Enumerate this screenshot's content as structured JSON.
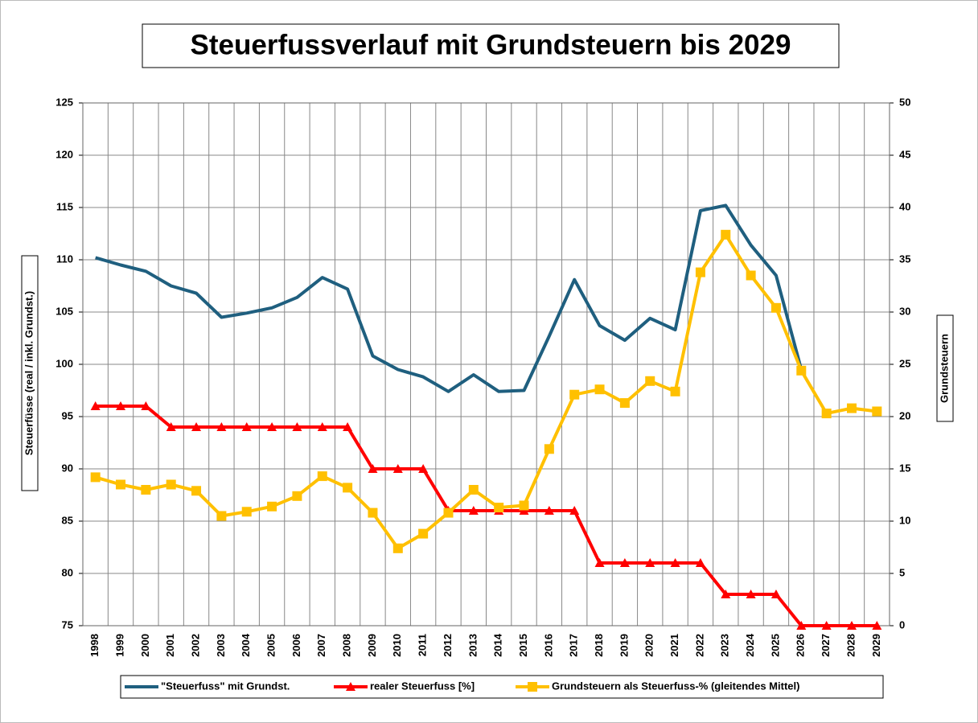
{
  "chart_data": {
    "type": "line",
    "title": "Steuerfussverlauf mit Grundsteuern bis 2029",
    "ylabel": "Steuerfüsse (real / inkl. Grundst.)",
    "y2label": "Grundsteuern",
    "categories": [
      "1998",
      "1999",
      "2000",
      "2001",
      "2002",
      "2003",
      "2004",
      "2005",
      "2006",
      "2007",
      "2008",
      "2009",
      "2010",
      "2011",
      "2012",
      "2013",
      "2014",
      "2015",
      "2016",
      "2017",
      "2018",
      "2019",
      "2020",
      "2021",
      "2022",
      "2023",
      "2024",
      "2025",
      "2026",
      "2027",
      "2028",
      "2029"
    ],
    "ylim": [
      75,
      125
    ],
    "yticks": [
      75,
      80,
      85,
      90,
      95,
      100,
      105,
      110,
      115,
      120,
      125
    ],
    "y2lim": [
      0,
      50
    ],
    "y2ticks": [
      0,
      5,
      10,
      15,
      20,
      25,
      30,
      35,
      40,
      45,
      50
    ],
    "grid": true,
    "legend": "bottom",
    "series": [
      {
        "name": "\"Steuerfuss\" mit Grundst.",
        "color": "#1f5f7f",
        "marker": "none",
        "values": [
          110.2,
          109.5,
          108.9,
          107.5,
          106.8,
          104.5,
          104.9,
          105.4,
          106.4,
          108.3,
          107.2,
          100.8,
          99.5,
          98.8,
          97.4,
          99.0,
          97.4,
          97.5,
          102.7,
          108.1,
          103.7,
          102.3,
          104.4,
          103.3,
          114.7,
          115.2,
          111.4,
          108.5,
          99.5,
          null,
          null,
          null
        ]
      },
      {
        "name": "realer Steuerfuss [%]",
        "color": "#ff0000",
        "marker": "triangle",
        "values": [
          96,
          96,
          96,
          94,
          94,
          94,
          94,
          94,
          94,
          94,
          94,
          90,
          90,
          90,
          86,
          86,
          86,
          86,
          86,
          86,
          81,
          81,
          81,
          81,
          81,
          78,
          78,
          78,
          75,
          75,
          75,
          75
        ]
      },
      {
        "name": "Grundsteuern als Steuerfuss-% (gleitendes Mittel)",
        "color": "#ffc000",
        "marker": "square",
        "axis": "y2",
        "values": [
          14.2,
          13.5,
          13.0,
          13.5,
          12.9,
          10.5,
          10.9,
          11.4,
          12.4,
          14.3,
          13.2,
          10.8,
          7.4,
          8.8,
          10.8,
          13.0,
          11.3,
          11.5,
          16.9,
          22.1,
          22.6,
          21.3,
          23.4,
          22.4,
          33.8,
          37.4,
          33.5,
          30.4,
          24.4,
          20.3,
          20.8,
          20.5
        ]
      }
    ]
  }
}
